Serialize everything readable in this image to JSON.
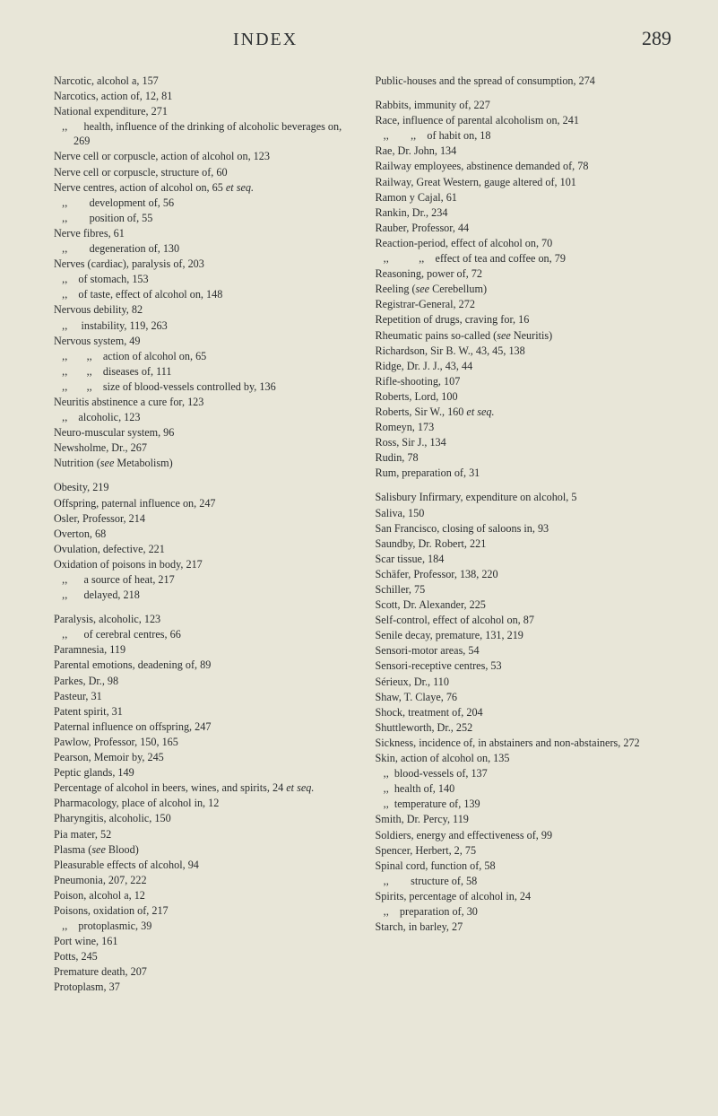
{
  "header": {
    "title": "INDEX",
    "page": "289"
  },
  "left": [
    "Narcotic, alcohol a, 157",
    "Narcotics, action of, 12, 81",
    "National expenditure, 271",
    "   ,,      health, influence of the drinking of alcoholic beverages on, 269",
    "Nerve cell or corpuscle, action of alcohol on, 123",
    "Nerve cell or corpuscle, structure of, 60",
    "Nerve centres, action of alcohol on, 65 <i>et seq.</i>",
    "   ,,        development of, 56",
    "   ,,        position of, 55",
    "Nerve fibres, 61",
    "   ,,        degeneration of, 130",
    "Nerves (cardiac), paralysis of, 203",
    "   ,,    of stomach, 153",
    "   ,,    of taste, effect of alcohol on, 148",
    "Nervous debility, 82",
    "   ,,     instability, 119, 263",
    "Nervous system, 49",
    "   ,,       ,,    action of alcohol on, 65",
    "   ,,       ,,    diseases of, 111",
    "   ,,       ,,    size of blood-vessels controlled by, 136",
    "Neuritis abstinence a cure for, 123",
    "   ,,    alcoholic, 123",
    "Neuro-muscular system, 96",
    "Newsholme, Dr., 267",
    "Nutrition (<i>see</i> Metabolism)",
    "",
    "Obesity, 219",
    "Offspring, paternal influence on, 247",
    "Osler, Professor, 214",
    "Overton, 68",
    "Ovulation, defective, 221",
    "Oxidation of poisons in body, 217",
    "   ,,      a source of heat, 217",
    "   ,,      delayed, 218",
    "",
    "Paralysis, alcoholic, 123",
    "   ,,      of cerebral centres, 66",
    "Paramnesia, 119",
    "Parental emotions, deadening of, 89",
    "Parkes, Dr., 98",
    "Pasteur, 31",
    "Patent spirit, 31",
    "Paternal influence on offspring, 247",
    "Pawlow, Professor, 150, 165",
    "Pearson, Memoir by, 245",
    "Peptic glands, 149",
    "Percentage of alcohol in beers, wines, and spirits, 24 <i>et seq.</i>",
    "Pharmacology, place of alcohol in, 12",
    "Pharyngitis, alcoholic, 150",
    "Pia mater, 52",
    "Plasma (<i>see</i> Blood)",
    "Pleasurable effects of alcohol, 94",
    "Pneumonia, 207, 222",
    "Poison, alcohol a, 12",
    "Poisons, oxidation of, 217",
    "   ,,    protoplasmic, 39",
    "Port wine, 161",
    "Potts, 245",
    "Premature death, 207",
    "Protoplasm, 37"
  ],
  "right": [
    "Public-houses and the spread of consumption, 274",
    "",
    "Rabbits, immunity of, 227",
    "Race, influence of parental alcoholism on, 241",
    "   ,,        ,,    of habit on, 18",
    "Rae, Dr. John, 134",
    "Railway employees, abstinence demanded of, 78",
    "Railway, Great Western, gauge altered of, 101",
    "Ramon y Cajal, 61",
    "Rankin, Dr., 234",
    "Rauber, Professor, 44",
    "Reaction-period, effect of alcohol on, 70",
    "   ,,           ,,    effect of tea and coffee on, 79",
    "Reasoning, power of, 72",
    "Reeling (<i>see</i> Cerebellum)",
    "Registrar-General, 272",
    "Repetition of drugs, craving for, 16",
    "Rheumatic pains so-called (<i>see</i> Neuritis)",
    "Richardson, Sir B. W., 43, 45, 138",
    "Ridge, Dr. J. J., 43, 44",
    "Rifle-shooting, 107",
    "Roberts, Lord, 100",
    "Roberts, Sir W., 160 <i>et seq.</i>",
    "Romeyn, 173",
    "Ross, Sir J., 134",
    "Rudin, 78",
    "Rum, preparation of, 31",
    "",
    "Salisbury Infirmary, expenditure on alcohol, 5",
    "Saliva, 150",
    "San Francisco, closing of saloons in, 93",
    "Saundby, Dr. Robert, 221",
    "Scar tissue, 184",
    "Schäfer, Professor, 138, 220",
    "Schiller, 75",
    "Scott, Dr. Alexander, 225",
    "Self-control, effect of alcohol on, 87",
    "Senile decay, premature, 131, 219",
    "Sensori-motor areas, 54",
    "Sensori-receptive centres, 53",
    "Sérieux, Dr., 110",
    "Shaw, T. Claye, 76",
    "Shock, treatment of, 204",
    "Shuttleworth, Dr., 252",
    "Sickness, incidence of, in abstainers and non-abstainers, 272",
    "Skin, action of alcohol on, 135",
    "   ,,  blood-vessels of, 137",
    "   ,,  health of, 140",
    "   ,,  temperature of, 139",
    "Smith, Dr. Percy, 119",
    "Soldiers, energy and effectiveness of, 99",
    "Spencer, Herbert, 2, 75",
    "Spinal cord, function of, 58",
    "   ,,        structure of, 58",
    "Spirits, percentage of alcohol in, 24",
    "   ,,    preparation of, 30",
    "Starch, in barley, 27"
  ]
}
